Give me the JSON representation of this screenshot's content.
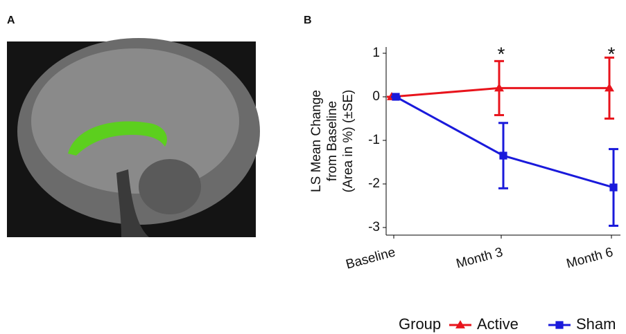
{
  "panels": {
    "a_label": "A",
    "b_label": "B"
  },
  "chart_data": {
    "type": "line",
    "categories": [
      "Baseline",
      "Month 3",
      "Month 6"
    ],
    "y_label": [
      "LS Mean Change",
      "from Baseline",
      "(Area in %) (±SE)"
    ],
    "ylim": [
      -3.2,
      1.15
    ],
    "yticks": [
      -3,
      -2,
      -1,
      0,
      1
    ],
    "series": [
      {
        "name": "Active",
        "color": "#e8141c",
        "marker": "triangle",
        "values": [
          0,
          0.2,
          0.2
        ],
        "errors": [
          0,
          0.62,
          0.7
        ]
      },
      {
        "name": "Sham",
        "color": "#1a1adb",
        "marker": "square",
        "values": [
          0,
          -1.35,
          -2.08
        ],
        "errors": [
          0,
          0.75,
          0.88
        ]
      }
    ],
    "annotations": [
      {
        "text": "*",
        "category": "Month 3"
      },
      {
        "text": "*",
        "category": "Month 6"
      }
    ],
    "legend_title": "Group",
    "legend_position": "bottom"
  }
}
